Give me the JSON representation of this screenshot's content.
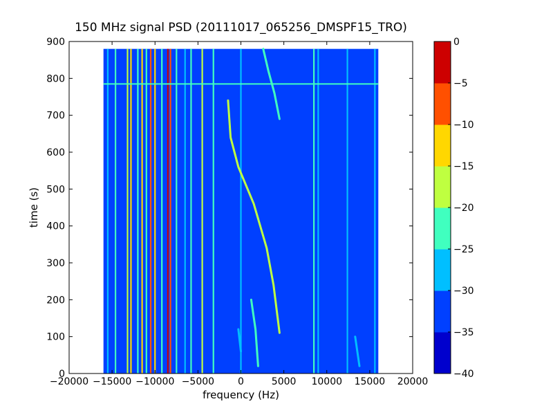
{
  "chart_data": {
    "type": "heatmap",
    "title": "150 MHz signal PSD (20111017_065256_DMSPF15_TRO)",
    "xlabel": "frequency (Hz)",
    "ylabel": "time (s)",
    "xlim": [
      -20000,
      20000
    ],
    "ylim": [
      0,
      900
    ],
    "x_ticks": [
      -20000,
      -15000,
      -10000,
      -5000,
      0,
      5000,
      10000,
      15000,
      20000
    ],
    "x_tick_labels": [
      "−20000",
      "−15000",
      "−10000",
      "−5000",
      "0",
      "5000",
      "10000",
      "15000",
      "20000"
    ],
    "y_ticks": [
      0,
      100,
      200,
      300,
      400,
      500,
      600,
      700,
      800,
      900
    ],
    "y_tick_labels": [
      "0",
      "100",
      "200",
      "300",
      "400",
      "500",
      "600",
      "700",
      "800",
      "900"
    ],
    "data_extent": {
      "x": [
        -16000,
        16000
      ],
      "y": [
        0,
        880
      ]
    },
    "colorbar": {
      "levels": [
        -40,
        -35,
        -30,
        -25,
        -20,
        -15,
        -10,
        -5,
        0
      ],
      "tick_labels": [
        "−40",
        "−35",
        "−30",
        "−25",
        "−20",
        "−15",
        "−10",
        "−5",
        "0"
      ],
      "colors": [
        "#0000cd",
        "#0040ff",
        "#00bfff",
        "#40ffbf",
        "#bfff40",
        "#ffd700",
        "#ff5000",
        "#cd0000"
      ]
    },
    "background_level": -35,
    "vertical_lines": [
      {
        "x": -15500,
        "level": -30
      },
      {
        "x": -14600,
        "level": -25
      },
      {
        "x": -13200,
        "level": -20
      },
      {
        "x": -12800,
        "level": -15
      },
      {
        "x": -12000,
        "level": -25
      },
      {
        "x": -11500,
        "level": -15
      },
      {
        "x": -11000,
        "level": -25
      },
      {
        "x": -10500,
        "level": -10
      },
      {
        "x": -10000,
        "level": -15
      },
      {
        "x": -9200,
        "level": -25
      },
      {
        "x": -8500,
        "level": -5
      },
      {
        "x": -8200,
        "level": -10
      },
      {
        "x": -7500,
        "level": -25
      },
      {
        "x": -6500,
        "level": -30
      },
      {
        "x": -5800,
        "level": -25
      },
      {
        "x": -4500,
        "level": -20
      },
      {
        "x": -3200,
        "level": -25
      },
      {
        "x": 0,
        "level": -30
      },
      {
        "x": 8500,
        "level": -25
      },
      {
        "x": 9000,
        "level": -30
      },
      {
        "x": 12400,
        "level": -30
      },
      {
        "x": 15600,
        "level": -30
      }
    ],
    "horizontal_lines": [
      {
        "y": 785,
        "level": -25
      }
    ],
    "doppler_traces": [
      {
        "points": [
          [
            2600,
            880
          ],
          [
            3200,
            820
          ],
          [
            3900,
            760
          ],
          [
            4500,
            690
          ]
        ],
        "level": -25
      },
      {
        "points": [
          [
            -1500,
            740
          ],
          [
            -1200,
            640
          ],
          [
            -300,
            560
          ],
          [
            1500,
            460
          ],
          [
            3000,
            340
          ],
          [
            3800,
            240
          ],
          [
            4500,
            110
          ]
        ],
        "level": -20
      },
      {
        "points": [
          [
            1200,
            200
          ],
          [
            1700,
            120
          ],
          [
            2000,
            20
          ]
        ],
        "level": -25
      },
      {
        "points": [
          [
            -300,
            120
          ],
          [
            0,
            60
          ]
        ],
        "level": -30
      },
      {
        "points": [
          [
            13300,
            100
          ],
          [
            13800,
            20
          ]
        ],
        "level": -30
      }
    ]
  }
}
